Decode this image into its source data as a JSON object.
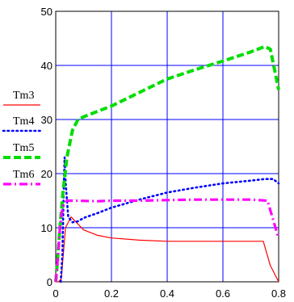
{
  "chart_data": {
    "type": "line",
    "title": "",
    "xlabel": "",
    "ylabel": "",
    "xlim": [
      0,
      0.8
    ],
    "ylim": [
      0,
      50
    ],
    "x_ticks": [
      "0",
      "0.2",
      "0.4",
      "0.6",
      "0.8"
    ],
    "y_ticks": [
      "0",
      "10",
      "20",
      "30",
      "40",
      "50"
    ],
    "grid": true,
    "legend_position": "left",
    "series": [
      {
        "name": "Tm3",
        "color": "#ff0000",
        "style": "solid",
        "points": [
          [
            0,
            0
          ],
          [
            0.01,
            0
          ],
          [
            0.02,
            0.6
          ],
          [
            0.035,
            10
          ],
          [
            0.055,
            12
          ],
          [
            0.1,
            9.6
          ],
          [
            0.15,
            8.6
          ],
          [
            0.2,
            8.1
          ],
          [
            0.3,
            7.7
          ],
          [
            0.4,
            7.5
          ],
          [
            0.5,
            7.5
          ],
          [
            0.6,
            7.5
          ],
          [
            0.7,
            7.5
          ],
          [
            0.745,
            7.5
          ],
          [
            0.77,
            3
          ],
          [
            0.8,
            0
          ]
        ]
      },
      {
        "name": "Tm4",
        "color": "#0000ff",
        "style": "dotted",
        "points": [
          [
            0.018,
            0
          ],
          [
            0.024,
            5
          ],
          [
            0.028,
            16
          ],
          [
            0.032,
            23
          ],
          [
            0.036,
            18
          ],
          [
            0.045,
            12
          ],
          [
            0.06,
            11
          ],
          [
            0.08,
            11.2
          ],
          [
            0.1,
            11.8
          ],
          [
            0.15,
            12.7
          ],
          [
            0.2,
            13.7
          ],
          [
            0.3,
            15.2
          ],
          [
            0.4,
            16.5
          ],
          [
            0.5,
            17.4
          ],
          [
            0.6,
            18.2
          ],
          [
            0.7,
            18.7
          ],
          [
            0.75,
            19
          ],
          [
            0.78,
            19
          ],
          [
            0.8,
            18.2
          ]
        ]
      },
      {
        "name": "Tm5",
        "color": "#00dd00",
        "style": "dashed",
        "points": [
          [
            0,
            0
          ],
          [
            0.005,
            3
          ],
          [
            0.015,
            10
          ],
          [
            0.025,
            16
          ],
          [
            0.04,
            23
          ],
          [
            0.06,
            28
          ],
          [
            0.08,
            30
          ],
          [
            0.1,
            30.5
          ],
          [
            0.15,
            31.5
          ],
          [
            0.2,
            32.5
          ],
          [
            0.3,
            35
          ],
          [
            0.4,
            37.5
          ],
          [
            0.5,
            39.2
          ],
          [
            0.6,
            40.8
          ],
          [
            0.7,
            42.5
          ],
          [
            0.75,
            43.5
          ],
          [
            0.77,
            43
          ],
          [
            0.79,
            38
          ],
          [
            0.8,
            35.5
          ]
        ]
      },
      {
        "name": "Tm6",
        "color": "#ff00ff",
        "style": "dashdot",
        "points": [
          [
            0,
            0
          ],
          [
            0.007,
            4
          ],
          [
            0.015,
            10
          ],
          [
            0.025,
            14
          ],
          [
            0.04,
            15
          ],
          [
            0.07,
            15
          ],
          [
            0.15,
            14.9
          ],
          [
            0.2,
            15
          ],
          [
            0.3,
            15
          ],
          [
            0.4,
            15.1
          ],
          [
            0.5,
            15.2
          ],
          [
            0.6,
            15.2
          ],
          [
            0.7,
            15.2
          ],
          [
            0.76,
            15
          ],
          [
            0.78,
            11.5
          ],
          [
            0.8,
            8
          ]
        ]
      }
    ]
  }
}
